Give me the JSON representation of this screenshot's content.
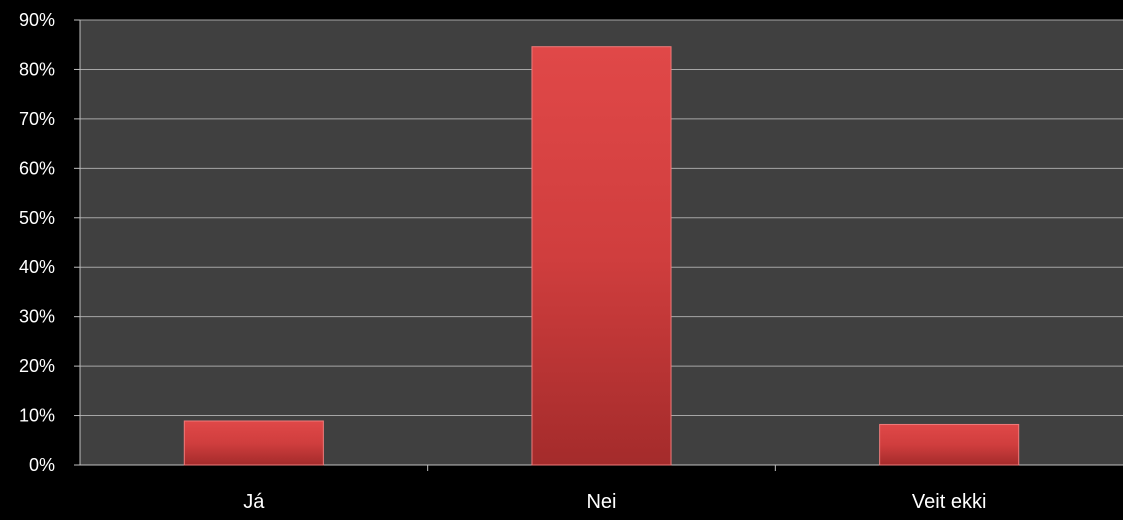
{
  "chart_data": {
    "type": "bar",
    "title": "",
    "xlabel": "",
    "ylabel": "",
    "categories": [
      "Já",
      "Nei",
      "Veit ekki"
    ],
    "values": [
      8.9,
      84.6,
      8.2
    ],
    "ylim": [
      0,
      90
    ],
    "yticks": [
      "0%",
      "10%",
      "20%",
      "30%",
      "40%",
      "50%",
      "60%",
      "70%",
      "80%",
      "90%"
    ],
    "grid": true,
    "legend": "none",
    "colors": {
      "background": "#000000",
      "plot_area": "#404040",
      "gridline": "#a6a6a6",
      "bar": "#d13c3c"
    }
  }
}
